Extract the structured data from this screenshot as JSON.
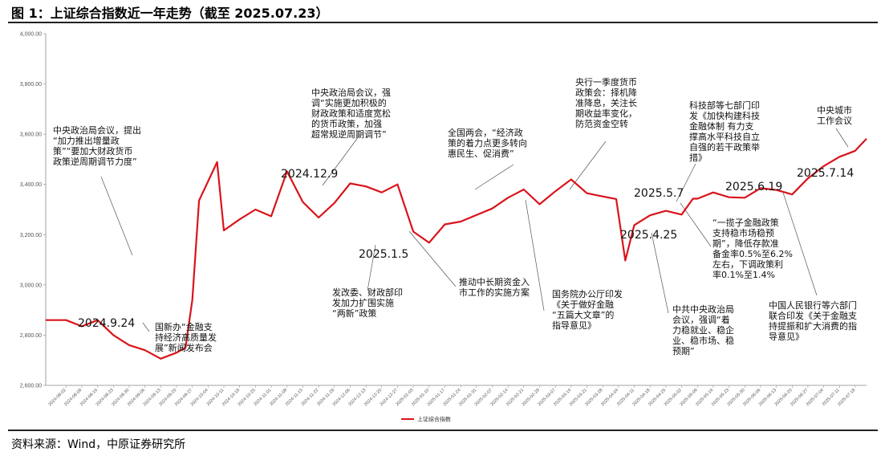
{
  "page": {
    "title": "图 1：上证综合指数近一年走势（截至 2025.07.23）",
    "source": "资料来源：Wind，中原证券研究所"
  },
  "colors": {
    "line": "#d9141b",
    "leader": "#555555",
    "axis": "#888888"
  },
  "chart_data": {
    "type": "line",
    "title": "",
    "xlabel": "",
    "ylabel": "",
    "ylim": [
      2600,
      4000
    ],
    "yticks": [
      2600,
      2800,
      3000,
      3200,
      3400,
      3600,
      3800,
      4000
    ],
    "ytick_labels": [
      "2,600.00",
      "2,800.00",
      "3,000.00",
      "3,200.00",
      "3,400.00",
      "3,600.00",
      "3,800.00",
      "4,000.00"
    ],
    "x_tick_labels": [
      "2024-08-02",
      "2024-08-09",
      "2024-08-16",
      "2024-08-23",
      "2024-08-30",
      "2024-09-06",
      "2024-09-13",
      "2024-09-20",
      "2024-09-27",
      "2024-10-04",
      "2024-10-11",
      "2024-10-18",
      "2024-10-25",
      "2024-11-01",
      "2024-11-08",
      "2024-11-15",
      "2024-11-22",
      "2024-11-29",
      "2024-12-06",
      "2024-12-13",
      "2024-12-20",
      "2024-12-27",
      "2025-01-03",
      "2025-01-10",
      "2025-01-17",
      "2025-01-24",
      "2025-01-31",
      "2025-02-07",
      "2025-02-14",
      "2025-02-21",
      "2025-02-28",
      "2025-03-07",
      "2025-03-14",
      "2025-03-21",
      "2025-03-28",
      "2025-04-04",
      "2025-04-11",
      "2025-04-18",
      "2025-04-25",
      "2025-05-02",
      "2025-05-09",
      "2025-05-16",
      "2025-05-23",
      "2025-05-30",
      "2025-06-06",
      "2025-06-13",
      "2025-06-20",
      "2025-06-27",
      "2025-07-04",
      "2025-07-11",
      "2025-07-18"
    ],
    "series": [
      {
        "name": "上证综合指数",
        "values": [
          [
            "2024-07-24",
            2860
          ],
          [
            "2024-08-02",
            2860
          ],
          [
            "2024-08-09",
            2835
          ],
          [
            "2024-08-16",
            2860
          ],
          [
            "2024-08-23",
            2800
          ],
          [
            "2024-08-30",
            2760
          ],
          [
            "2024-09-06",
            2740
          ],
          [
            "2024-09-13",
            2706
          ],
          [
            "2024-09-20",
            2730
          ],
          [
            "2024-09-24",
            2750
          ],
          [
            "2024-09-27",
            2940
          ],
          [
            "2024-09-30",
            3336
          ],
          [
            "2024-10-08",
            3489
          ],
          [
            "2024-10-11",
            3217
          ],
          [
            "2024-10-18",
            3261
          ],
          [
            "2024-10-25",
            3300
          ],
          [
            "2024-11-01",
            3273
          ],
          [
            "2024-11-08",
            3452
          ],
          [
            "2024-11-15",
            3330
          ],
          [
            "2024-11-22",
            3268
          ],
          [
            "2024-11-29",
            3326
          ],
          [
            "2024-12-06",
            3404
          ],
          [
            "2024-12-13",
            3392
          ],
          [
            "2024-12-20",
            3368
          ],
          [
            "2024-12-27",
            3400
          ],
          [
            "2025-01-03",
            3212
          ],
          [
            "2025-01-10",
            3168
          ],
          [
            "2025-01-17",
            3241
          ],
          [
            "2025-01-24",
            3252
          ],
          [
            "2025-02-07",
            3304
          ],
          [
            "2025-02-14",
            3347
          ],
          [
            "2025-02-21",
            3380
          ],
          [
            "2025-02-28",
            3321
          ],
          [
            "2025-03-07",
            3373
          ],
          [
            "2025-03-14",
            3420
          ],
          [
            "2025-03-21",
            3365
          ],
          [
            "2025-03-28",
            3352
          ],
          [
            "2025-04-03",
            3342
          ],
          [
            "2025-04-07",
            3097
          ],
          [
            "2025-04-11",
            3238
          ],
          [
            "2025-04-18",
            3277
          ],
          [
            "2025-04-25",
            3295
          ],
          [
            "2025-05-02",
            3280
          ],
          [
            "2025-05-07",
            3343
          ],
          [
            "2025-05-09",
            3343
          ],
          [
            "2025-05-16",
            3368
          ],
          [
            "2025-05-23",
            3349
          ],
          [
            "2025-05-30",
            3347
          ],
          [
            "2025-06-06",
            3385
          ],
          [
            "2025-06-13",
            3378
          ],
          [
            "2025-06-20",
            3360
          ],
          [
            "2025-06-27",
            3424
          ],
          [
            "2025-07-04",
            3473
          ],
          [
            "2025-07-11",
            3510
          ],
          [
            "2025-07-14",
            3520
          ],
          [
            "2025-07-18",
            3534
          ],
          [
            "2025-07-23",
            3582
          ]
        ]
      }
    ],
    "legend": {
      "position": "bottom-center"
    },
    "grid": false,
    "date_markers": [
      {
        "label": "2024.9.24"
      },
      {
        "label": "2024.12.9"
      },
      {
        "label": "2025.1.5"
      },
      {
        "label": "2025.4.25"
      },
      {
        "label": "2025.5.7"
      },
      {
        "label": "2025.6.19"
      },
      {
        "label": "2025.7.14"
      }
    ],
    "annotations": [
      {
        "lines": [
          "中央政治局会议，提出",
          "“加力推出增量政",
          "策”“要加大财政货币",
          "政策逆周期调节力度”"
        ]
      },
      {
        "lines": [
          "国新办“金融支",
          "持经济高质量发",
          "展”新闻发布会"
        ]
      },
      {
        "lines": [
          "中央政治局会议，强",
          "调“实施更加积极的",
          "财政政策和适度宽松",
          "的货币政策，加强",
          "超常规逆周期调节”"
        ]
      },
      {
        "lines": [
          "发改委、财政部印",
          "发加力扩围实施",
          "“两新”政策"
        ]
      },
      {
        "lines": [
          "推动中长期资金入",
          "市工作的实施方案"
        ]
      },
      {
        "lines": [
          "全国两会，“经济政",
          "策的着力点更多转向",
          "惠民生、促消费”"
        ]
      },
      {
        "lines": [
          "国务院办公厅印发",
          "《关于做好金融",
          "“五篇大文章”的",
          "指导意见》"
        ]
      },
      {
        "lines": [
          "央行一季度货币",
          "政策会：择机降",
          "准降息，关注长",
          "期收益率变化，",
          "防范资金空转"
        ]
      },
      {
        "lines": [
          "中共中央政治局",
          "会议，强调“着",
          "力稳就业、稳企",
          "业、稳市场、稳",
          "预期”"
        ]
      },
      {
        "lines": [
          "科技部等七部门印",
          "发《加快构建科技",
          "金融体制 有力支",
          "撑高水平科技自立",
          "自强的若干政策举",
          "措》"
        ]
      },
      {
        "lines": [
          "“一揽子金融政策",
          "支持稳市场稳预",
          "期”，降低存款准",
          "备金率0.5%至6.2%",
          "左右，下调政策利",
          "率0.1%至1.4%"
        ]
      },
      {
        "lines": [
          "中央城市",
          "工作会议"
        ]
      },
      {
        "lines": [
          "中国人民银行等六部门",
          "联合印发《关于金融支",
          "持提振和扩大消费的指",
          "导意见》"
        ]
      }
    ]
  }
}
